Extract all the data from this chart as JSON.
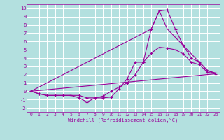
{
  "xlabel": "Windchill (Refroidissement éolien,°C)",
  "bg_color": "#b3e0df",
  "grid_color": "#ffffff",
  "line_color": "#990099",
  "xlim": [
    -0.5,
    23.5
  ],
  "ylim": [
    -2.5,
    10.5
  ],
  "xticks": [
    0,
    1,
    2,
    3,
    4,
    5,
    6,
    7,
    8,
    9,
    10,
    11,
    12,
    13,
    14,
    15,
    16,
    17,
    18,
    19,
    20,
    21,
    22,
    23
  ],
  "yticks": [
    -2,
    -1,
    0,
    1,
    2,
    3,
    4,
    5,
    6,
    7,
    8,
    9,
    10
  ],
  "lines": [
    {
      "x": [
        0,
        1,
        2,
        3,
        4,
        5,
        6,
        7,
        8,
        9,
        10,
        11,
        12,
        13,
        14,
        15,
        16,
        17,
        18,
        19,
        20,
        21,
        22,
        23
      ],
      "y": [
        0,
        -0.3,
        -0.5,
        -0.5,
        -0.5,
        -0.5,
        -0.8,
        -1.3,
        -0.8,
        -0.8,
        -0.7,
        0.3,
        1.5,
        3.5,
        3.5,
        4.6,
        5.3,
        5.2,
        5.0,
        4.5,
        3.5,
        3.2,
        2.3,
        2.1
      ],
      "markers": true
    },
    {
      "x": [
        0,
        1,
        2,
        3,
        4,
        5,
        6,
        7,
        8,
        9,
        10,
        11,
        12,
        13,
        14,
        15,
        16,
        17,
        18,
        19,
        20,
        21,
        22,
        23
      ],
      "y": [
        0,
        -0.3,
        -0.5,
        -0.5,
        -0.5,
        -0.5,
        -0.5,
        -0.8,
        -0.8,
        -0.6,
        0.0,
        0.5,
        1.0,
        2.0,
        3.5,
        7.5,
        9.7,
        9.8,
        7.5,
        5.5,
        4.0,
        3.5,
        2.5,
        2.2
      ],
      "markers": true
    },
    {
      "x": [
        0,
        23
      ],
      "y": [
        0,
        2.1
      ],
      "markers": false
    },
    {
      "x": [
        0,
        15,
        16,
        17,
        22,
        23
      ],
      "y": [
        0,
        7.5,
        9.7,
        7.5,
        2.5,
        2.1
      ],
      "markers": false
    }
  ]
}
